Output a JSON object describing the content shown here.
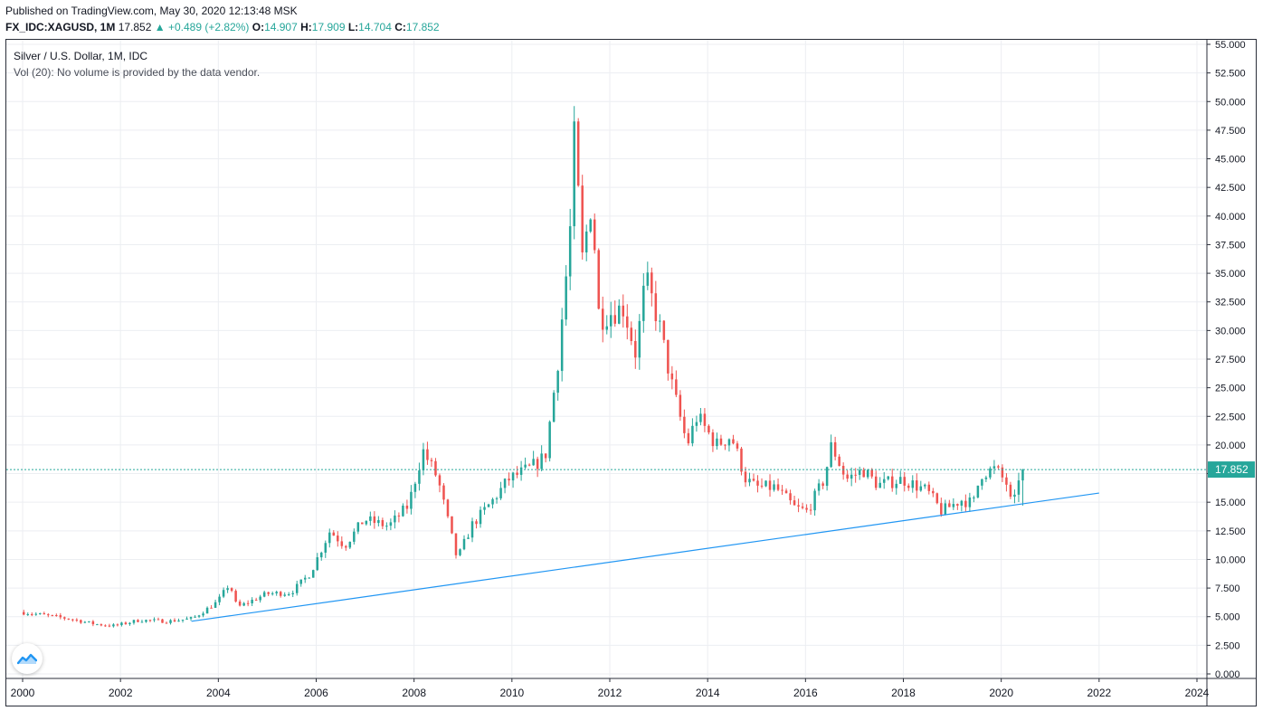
{
  "header": {
    "published": "Published on TradingView.com, May 30, 2020 12:13:48 MSK",
    "symbol": "FX_IDC:XAGUSD, 1M",
    "last": "17.852",
    "change_arrow": "▲",
    "change": "+0.489 (+2.82%)",
    "o_label": "O:",
    "o": "14.907",
    "h_label": "H:",
    "h": "17.909",
    "l_label": "L:",
    "l": "14.704",
    "c_label": "C:",
    "c": "17.852"
  },
  "legend": {
    "title": "Silver / U.S. Dollar, 1M, IDC",
    "volume_note": "Vol (20): No volume is provided by the data vendor."
  },
  "logo": {
    "icon": "tradingview-logo-icon"
  },
  "colors": {
    "up": "#26a69a",
    "down": "#ef5350",
    "trendline": "#2196f3",
    "price_line": "#26a69a",
    "grid": "#eceef2",
    "frame": "#2a2e39"
  },
  "chart_data": {
    "type": "candlestick",
    "title": "Silver / U.S. Dollar, 1M, IDC",
    "ylim": [
      0,
      55
    ],
    "y_ticks": [
      "0.000",
      "2.500",
      "5.000",
      "7.500",
      "10.000",
      "12.500",
      "15.000",
      "17.500",
      "20.000",
      "22.500",
      "25.000",
      "27.500",
      "30.000",
      "32.500",
      "35.000",
      "37.500",
      "40.000",
      "42.500",
      "45.000",
      "47.500",
      "50.000",
      "52.500",
      "55.000"
    ],
    "x_ticks": [
      "2000",
      "2002",
      "2004",
      "2006",
      "2008",
      "2010",
      "2012",
      "2014",
      "2016",
      "2018",
      "2020",
      "2022",
      "2024"
    ],
    "xlim": [
      2000.0,
      2024.6
    ],
    "current_price": 17.852,
    "current_price_label": "17.852",
    "trendline": [
      [
        2003.45,
        4.6
      ],
      [
        2022.0,
        15.8
      ]
    ],
    "anchors": [
      [
        2000.0,
        5.4
      ],
      [
        2000.5,
        5.1
      ],
      [
        2001.0,
        4.8
      ],
      [
        2001.5,
        4.35
      ],
      [
        2001.9,
        4.2
      ],
      [
        2002.4,
        4.7
      ],
      [
        2003.0,
        4.6
      ],
      [
        2003.5,
        4.85
      ],
      [
        2004.0,
        6.3
      ],
      [
        2004.25,
        7.9
      ],
      [
        2004.4,
        5.8
      ],
      [
        2005.0,
        7.0
      ],
      [
        2005.5,
        7.1
      ],
      [
        2005.9,
        8.8
      ],
      [
        2006.3,
        12.5
      ],
      [
        2006.6,
        11.2
      ],
      [
        2007.0,
        13.5
      ],
      [
        2007.5,
        12.9
      ],
      [
        2007.9,
        14.7
      ],
      [
        2008.2,
        19.5
      ],
      [
        2008.5,
        17.1
      ],
      [
        2008.9,
        10.0
      ],
      [
        2009.2,
        13.0
      ],
      [
        2009.6,
        15.0
      ],
      [
        2009.95,
        17.0
      ],
      [
        2010.4,
        18.0
      ],
      [
        2010.7,
        19.0
      ],
      [
        2010.95,
        27.0
      ],
      [
        2011.2,
        38.0
      ],
      [
        2011.3,
        47.5
      ],
      [
        2011.45,
        36.0
      ],
      [
        2011.65,
        41.5
      ],
      [
        2011.8,
        31.0
      ],
      [
        2012.0,
        31.5
      ],
      [
        2012.3,
        32.0
      ],
      [
        2012.55,
        28.0
      ],
      [
        2012.75,
        34.5
      ],
      [
        2013.0,
        31.0
      ],
      [
        2013.3,
        25.0
      ],
      [
        2013.6,
        20.0
      ],
      [
        2013.8,
        22.5
      ],
      [
        2014.2,
        20.0
      ],
      [
        2014.5,
        20.8
      ],
      [
        2014.8,
        17.0
      ],
      [
        2015.0,
        16.3
      ],
      [
        2015.4,
        16.3
      ],
      [
        2015.8,
        14.5
      ],
      [
        2016.05,
        14.2
      ],
      [
        2016.4,
        17.0
      ],
      [
        2016.55,
        20.0
      ],
      [
        2016.85,
        17.0
      ],
      [
        2017.2,
        17.8
      ],
      [
        2017.5,
        16.5
      ],
      [
        2018.0,
        17.0
      ],
      [
        2018.5,
        16.0
      ],
      [
        2018.8,
        14.2
      ],
      [
        2019.2,
        15.2
      ],
      [
        2019.45,
        14.9
      ],
      [
        2019.6,
        17.5
      ],
      [
        2019.9,
        17.9
      ],
      [
        2020.15,
        16.5
      ],
      [
        2020.25,
        14.1
      ],
      [
        2020.4,
        17.85
      ]
    ]
  }
}
